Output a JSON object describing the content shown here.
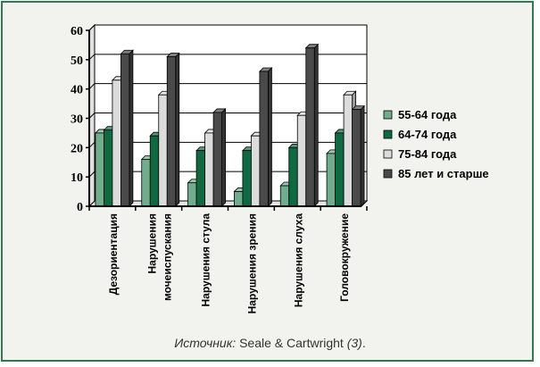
{
  "chart_data": {
    "type": "bar",
    "categories": [
      [
        "Дезориентация"
      ],
      [
        "Нарушения",
        "мочеиспускания"
      ],
      [
        "Нарушения стула"
      ],
      [
        "Нарушения зрения"
      ],
      [
        "Нарушения слуха"
      ],
      [
        "Головокружение"
      ]
    ],
    "series": [
      {
        "name": "55-64 года",
        "values": [
          25,
          16,
          8,
          5,
          7,
          18
        ]
      },
      {
        "name": "64-74 года",
        "values": [
          26,
          24,
          19,
          19,
          20,
          25
        ]
      },
      {
        "name": "75-84 года",
        "values": [
          43,
          38,
          25,
          24,
          31,
          38
        ]
      },
      {
        "name": "85 лет и старше",
        "values": [
          52,
          51,
          32,
          46,
          54,
          33
        ]
      }
    ],
    "ylim": [
      0,
      60
    ],
    "yticks": [
      0,
      10,
      20,
      30,
      40,
      50,
      60
    ],
    "grid": true,
    "legend_position": "right",
    "colors": {
      "series": [
        "#6fae8d",
        "#0e6b41",
        "#dcdcdc",
        "#4a4a4a"
      ],
      "frame": "#2f7a4f",
      "background": "#f2f2ee"
    }
  },
  "caption": {
    "source_label": "Источник:",
    "source_authors": " Seale & Cartwright ",
    "source_ref": "(3)",
    "end": "."
  }
}
